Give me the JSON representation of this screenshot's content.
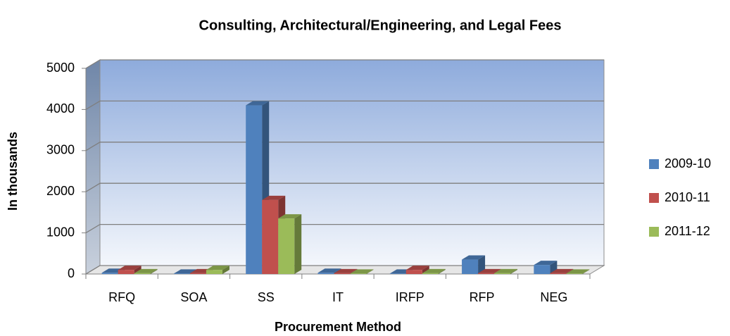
{
  "chart_data": {
    "type": "bar3d",
    "title": "Consulting, Architectural/Engineering, and Legal Fees",
    "x_label": "Procurement Method",
    "y_label": "In thousands",
    "categories": [
      "RFQ",
      "SOA",
      "SS",
      "IT",
      "IRFP",
      "RFP",
      "NEG"
    ],
    "series": [
      {
        "name": "2009-10",
        "color": "#4f81bd",
        "values": [
          30,
          10,
          4100,
          30,
          10,
          350,
          220
        ]
      },
      {
        "name": "2010-11",
        "color": "#c0504d",
        "values": [
          100,
          20,
          1800,
          20,
          100,
          20,
          20
        ]
      },
      {
        "name": "2011-12",
        "color": "#9bbb59",
        "values": [
          20,
          100,
          1350,
          10,
          20,
          20,
          10
        ]
      }
    ],
    "ylim": [
      0,
      5000
    ],
    "yticks": [
      0,
      1000,
      2000,
      3000,
      4000,
      5000
    ],
    "grid": true,
    "legend": "right"
  }
}
